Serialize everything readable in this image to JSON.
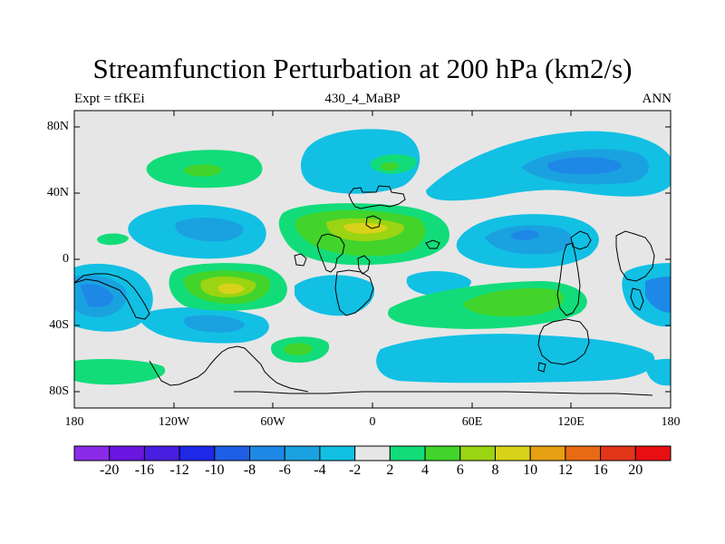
{
  "title": "Streamfunction Perturbation at 200 hPa (km2/s)",
  "subtitle_left": "Expt = tfKEi",
  "subtitle_center": "430_4_MaBP",
  "subtitle_right": "ANN",
  "axes": {
    "y_ticks": [
      "80N",
      "40N",
      "0",
      "40S",
      "80S"
    ],
    "x_ticks": [
      "180",
      "120W",
      "60W",
      "0",
      "60E",
      "120E",
      "180"
    ],
    "lon_range": [
      -180,
      180
    ],
    "lat_range": [
      -90,
      90
    ]
  },
  "colorbar": {
    "labels": [
      "-20",
      "-16",
      "-12",
      "-10",
      "-8",
      "-6",
      "-4",
      "-2",
      "2",
      "4",
      "6",
      "8",
      "10",
      "12",
      "16",
      "20"
    ],
    "colors": [
      "#8a2be8",
      "#6a16e0",
      "#4a1ee0",
      "#1e28e6",
      "#1f5fe6",
      "#1e88e6",
      "#1aa2e0",
      "#12c0e4",
      "#e6e6e6",
      "#12dc7a",
      "#42d42a",
      "#9ad412",
      "#d8d21a",
      "#e6a012",
      "#e86a14",
      "#e2351a",
      "#e80f12"
    ]
  },
  "map_background": "#e6e6e6"
}
